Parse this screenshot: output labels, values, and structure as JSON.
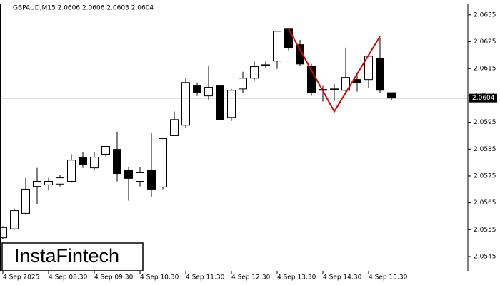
{
  "chart_data": {
    "type": "candlestick",
    "title": "GBPAUD,M15  2.0606 2.0606 2.0603 2.0604",
    "categories": [
      "4 Sep 2025",
      null,
      null,
      null,
      "4 Sep 08:30",
      null,
      null,
      null,
      "4 Sep 09:30",
      null,
      null,
      null,
      "4 Sep 10:30",
      null,
      null,
      null,
      "4 Sep 11:30",
      null,
      null,
      null,
      "4 Sep 12:30",
      null,
      null,
      null,
      "4 Sep 13:30",
      null,
      null,
      null,
      "4 Sep 14:30",
      null,
      null,
      null,
      "4 Sep 15:30",
      null,
      null
    ],
    "open": [
      2.0552,
      2.05553,
      2.05611,
      2.05711,
      2.05717,
      2.0572,
      2.0573,
      2.0582,
      2.0578,
      2.05831,
      2.05849,
      2.0577,
      2.0573,
      2.0577,
      2.05709,
      2.059,
      2.05939,
      2.06088,
      2.06048,
      2.06088,
      2.05968,
      2.06074,
      2.06114,
      2.06162,
      2.06178,
      2.06297,
      2.06239,
      2.06159,
      2.06069,
      2.06072,
      2.06069,
      2.06109,
      2.06109,
      2.06188,
      2.0606
    ],
    "high": [
      2.05563,
      2.05629,
      2.05743,
      2.0578,
      2.05743,
      2.05754,
      2.05831,
      2.05839,
      2.05839,
      2.0586,
      2.05915,
      2.05783,
      2.05783,
      2.0591,
      2.05889,
      2.0599,
      2.06114,
      2.06098,
      2.06159,
      2.06088,
      2.06074,
      2.06138,
      2.06178,
      2.06178,
      2.06289,
      2.06297,
      2.06257,
      2.06167,
      2.06088,
      2.06093,
      2.06228,
      2.06127,
      2.06204,
      2.06263,
      2.0606
    ],
    "low": [
      2.05515,
      2.0555,
      2.05605,
      2.05645,
      2.05696,
      2.05711,
      2.05725,
      2.0578,
      2.0577,
      2.05823,
      2.0573,
      2.05658,
      2.05711,
      2.05672,
      2.05701,
      2.059,
      2.05929,
      2.06048,
      2.06032,
      2.0596,
      2.05955,
      2.06059,
      2.06106,
      2.06151,
      2.06149,
      2.06218,
      2.06159,
      2.06048,
      2.06027,
      2.06029,
      2.06056,
      2.06064,
      2.06077,
      2.06059,
      2.0603
    ],
    "close": [
      2.05558,
      2.05621,
      2.05701,
      2.0573,
      2.0573,
      2.05743,
      2.05809,
      2.05791,
      2.0582,
      2.0586,
      2.05759,
      2.05741,
      2.05762,
      2.05701,
      2.05889,
      2.0596,
      2.06098,
      2.06061,
      2.0608,
      2.0596,
      2.06069,
      2.06114,
      2.06157,
      2.06164,
      2.06289,
      2.06228,
      2.06167,
      2.06059,
      2.06072,
      2.06074,
      2.06117,
      2.06098,
      2.06196,
      2.06069,
      2.0604
    ],
    "up_color": "#ffffff",
    "down_color": "#000000",
    "outline_color": "#000000",
    "ylim": [
      2.05397,
      2.06392
    ],
    "yticks": [
      2.0545,
      2.0555,
      2.0565,
      2.0575,
      2.0585,
      2.0595,
      2.0605,
      2.0615,
      2.0625,
      2.0635
    ],
    "current_price": 2.0604,
    "pattern": {
      "color": "#e00000",
      "points": [
        {
          "x": 25,
          "y": 2.06297
        },
        {
          "x": 29,
          "y": 2.0599
        },
        {
          "x": 33,
          "y": 2.0627
        }
      ]
    }
  },
  "watermark": "InstaFintech"
}
